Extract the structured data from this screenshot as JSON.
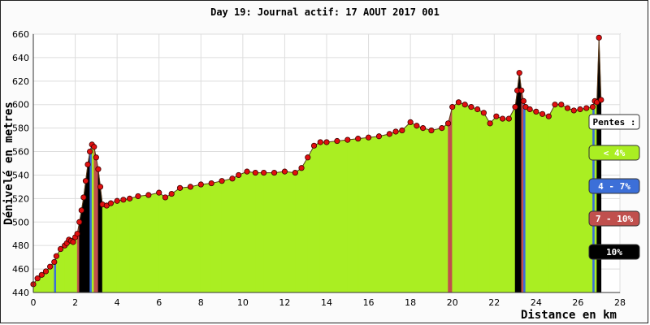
{
  "chart_data": {
    "type": "area",
    "title": "Day 19: Journal actif: 17 AOUT 2017 001",
    "xlabel": "Distance en km",
    "ylabel": "Dénivelé en metres",
    "xlim": [
      0,
      28
    ],
    "ylim": [
      440,
      660
    ],
    "xticks": [
      "0",
      "2",
      "4",
      "6",
      "8",
      "10",
      "12",
      "14",
      "16",
      "18",
      "20",
      "22",
      "24",
      "26",
      "28"
    ],
    "yticks": [
      "440",
      "460",
      "480",
      "500",
      "520",
      "540",
      "560",
      "580",
      "600",
      "620",
      "640",
      "660"
    ],
    "grid": true,
    "legend": {
      "title": "Pentes :",
      "placement": "right",
      "entries": [
        {
          "label": "< 4%",
          "color": "#aaee22",
          "text_color": "#ffffff"
        },
        {
          "label": "4 - 7%",
          "color": "#3c6fd8",
          "text_color": "#ffffff"
        },
        {
          "label": "7 - 10%",
          "color": "#c0504d",
          "text_color": "#ffffff"
        },
        {
          "label": "10%",
          "color": "#000000",
          "text_color": "#ffffff"
        }
      ]
    },
    "series": [
      {
        "x": [
          0,
          0.2,
          0.4,
          0.6,
          0.8,
          1.0,
          1.1,
          1.3,
          1.5,
          1.6,
          1.7,
          1.8,
          1.9,
          2.0,
          2.1,
          2.2,
          2.3,
          2.4,
          2.5,
          2.6,
          2.7,
          2.8,
          2.9,
          3.0,
          3.1,
          3.2,
          3.3,
          3.5,
          3.7,
          4.0,
          4.3,
          4.6,
          5.0,
          5.5,
          6.0,
          6.3,
          6.6,
          7.0,
          7.5,
          8.0,
          8.5,
          9.0,
          9.5,
          9.8,
          10.2,
          10.6,
          11.0,
          11.5,
          12.0,
          12.5,
          12.8,
          13.1,
          13.4,
          13.7,
          14.0,
          14.5,
          15.0,
          15.5,
          16.0,
          16.5,
          17.0,
          17.3,
          17.6,
          18.0,
          18.3,
          18.6,
          19.0,
          19.5,
          19.8,
          20.0,
          20.3,
          20.6,
          20.9,
          21.2,
          21.5,
          21.8,
          22.1,
          22.4,
          22.7,
          23.0,
          23.1,
          23.2,
          23.3,
          23.4,
          23.5,
          23.7,
          24.0,
          24.3,
          24.6,
          24.9,
          25.2,
          25.5,
          25.8,
          26.1,
          26.4,
          26.7,
          26.8,
          26.9,
          27.0,
          27.1
        ],
        "y": [
          447,
          452,
          455,
          458,
          462,
          466,
          471,
          477,
          480,
          482,
          485,
          484,
          483,
          487,
          490,
          500,
          510,
          521,
          535,
          549,
          560,
          566,
          564,
          555,
          545,
          530,
          515,
          514,
          516,
          518,
          519,
          520,
          522,
          523,
          525,
          521,
          524,
          529,
          530,
          532,
          533,
          535,
          537,
          540,
          543,
          542,
          542,
          542,
          543,
          542,
          546,
          555,
          565,
          568,
          568,
          569,
          570,
          571,
          572,
          573,
          575,
          577,
          578,
          585,
          582,
          580,
          578,
          580,
          584,
          598,
          602,
          600,
          598,
          596,
          593,
          584,
          590,
          588,
          588,
          598,
          612,
          627,
          612,
          603,
          598,
          596,
          594,
          592,
          590,
          600,
          600,
          597,
          595,
          596,
          597,
          598,
          603,
          602,
          657,
          604
        ]
      }
    ]
  }
}
